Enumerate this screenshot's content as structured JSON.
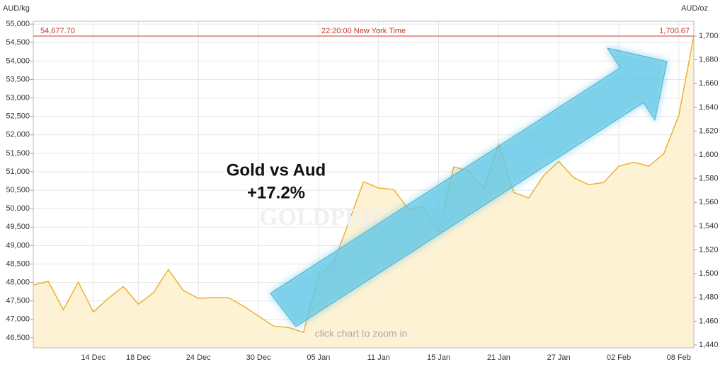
{
  "chart_data": {
    "type": "line",
    "y_axis_title": "AUD/kg",
    "y2_axis_title": "AUD/oz",
    "annotation_title": "Gold vs Aud",
    "annotation_change": "+17.2%",
    "watermark": "GOLDPRICE.ORG",
    "zoom_hint": "click chart to zoom in",
    "reference_line": {
      "value": 54677.7,
      "label": "54,677.70",
      "y2_value": 1700.67,
      "y2_label": "1,700.67",
      "time_label": "22:20:00 New York Time",
      "color": "#c0392b"
    },
    "categories": [
      null,
      null,
      null,
      null,
      "14 Dec",
      null,
      null,
      "18 Dec",
      null,
      null,
      null,
      "24 Dec",
      null,
      null,
      null,
      "30 Dec",
      null,
      null,
      null,
      "05 Jan",
      null,
      null,
      null,
      "11 Jan",
      null,
      null,
      null,
      "15 Jan",
      null,
      null,
      null,
      "21 Jan",
      null,
      null,
      null,
      "27 Jan",
      null,
      null,
      null,
      "02 Feb",
      null,
      null,
      null,
      "08 Feb",
      null
    ],
    "series": [
      {
        "color": "#f0b030",
        "fill": "#fdf2d4",
        "values": [
          47930,
          48030,
          47260,
          48010,
          47200,
          47570,
          47890,
          47410,
          47720,
          48350,
          47780,
          47570,
          47590,
          47590,
          47360,
          47090,
          46820,
          46780,
          46650,
          48200,
          48520,
          49620,
          50730,
          50560,
          50520,
          49980,
          50060,
          49370,
          51130,
          51030,
          50540,
          51740,
          50440,
          50290,
          50900,
          51280,
          50840,
          50650,
          50710,
          51150,
          51260,
          51150,
          51490,
          52530,
          54680
        ]
      }
    ],
    "ylim": [
      46230,
      55080
    ],
    "yticks": [
      {
        "value": 46500,
        "label": "46,500"
      },
      {
        "value": 47000,
        "label": "47,000"
      },
      {
        "value": 47500,
        "label": "47,500"
      },
      {
        "value": 48000,
        "label": "48,000"
      },
      {
        "value": 48500,
        "label": "48,500"
      },
      {
        "value": 49000,
        "label": "49,000"
      },
      {
        "value": 49500,
        "label": "49,500"
      },
      {
        "value": 50000,
        "label": "50,000"
      },
      {
        "value": 50500,
        "label": "50,500"
      },
      {
        "value": 51000,
        "label": "51,000"
      },
      {
        "value": 51500,
        "label": "51,500"
      },
      {
        "value": 52000,
        "label": "52,000"
      },
      {
        "value": 52500,
        "label": "52,500"
      },
      {
        "value": 53000,
        "label": "53,000"
      },
      {
        "value": 53500,
        "label": "53,500"
      },
      {
        "value": 54000,
        "label": "54,000"
      },
      {
        "value": 54500,
        "label": "54,500"
      },
      {
        "value": 55000,
        "label": "55,000"
      }
    ],
    "y2lim": [
      1437.6,
      1712.5
    ],
    "y2ticks": [
      {
        "value": 1440,
        "label": "1,440"
      },
      {
        "value": 1460,
        "label": "1,460"
      },
      {
        "value": 1480,
        "label": "1,480"
      },
      {
        "value": 1500,
        "label": "1,500"
      },
      {
        "value": 1520,
        "label": "1,520"
      },
      {
        "value": 1540,
        "label": "1,540"
      },
      {
        "value": 1560,
        "label": "1,560"
      },
      {
        "value": 1580,
        "label": "1,580"
      },
      {
        "value": 1600,
        "label": "1,600"
      },
      {
        "value": 1620,
        "label": "1,620"
      },
      {
        "value": 1640,
        "label": "1,640"
      },
      {
        "value": 1660,
        "label": "1,660"
      },
      {
        "value": 1680,
        "label": "1,680"
      },
      {
        "value": 1700,
        "label": "1,700"
      }
    ],
    "grid": true
  }
}
